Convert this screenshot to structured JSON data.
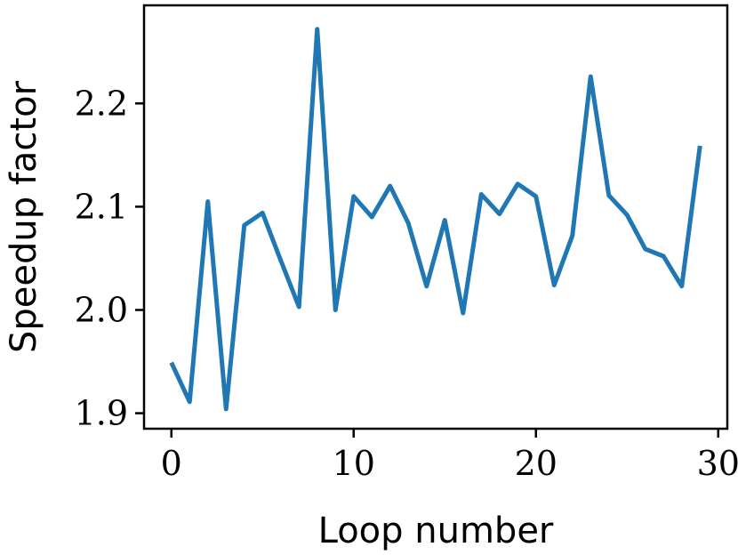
{
  "chart_data": {
    "type": "line",
    "title": "",
    "xlabel": "Loop number",
    "ylabel": "Speedup factor",
    "xlim": [
      -1.5,
      30.5
    ],
    "ylim": [
      1.885,
      2.295
    ],
    "xticks": [
      0,
      10,
      20,
      30
    ],
    "xtick_labels": [
      "0",
      "10",
      "20",
      "30"
    ],
    "yticks": [
      1.9,
      2.0,
      2.1,
      2.2
    ],
    "ytick_labels": [
      "1.9",
      "2.0",
      "2.1",
      "2.2"
    ],
    "grid": false,
    "series": [
      {
        "color": "#1f77b4",
        "x": [
          0,
          1,
          2,
          3,
          4,
          5,
          6,
          7,
          8,
          9,
          10,
          11,
          12,
          13,
          14,
          15,
          16,
          17,
          18,
          19,
          20,
          21,
          22,
          23,
          24,
          25,
          26,
          27,
          28,
          29
        ],
        "y": [
          1.949,
          1.911,
          2.105,
          1.904,
          2.082,
          2.094,
          2.048,
          2.003,
          2.272,
          2.0,
          2.11,
          2.09,
          2.12,
          2.084,
          2.023,
          2.087,
          1.997,
          2.112,
          2.093,
          2.122,
          2.11,
          2.024,
          2.072,
          2.226,
          2.111,
          2.092,
          2.059,
          2.052,
          2.023,
          2.159
        ]
      }
    ]
  }
}
